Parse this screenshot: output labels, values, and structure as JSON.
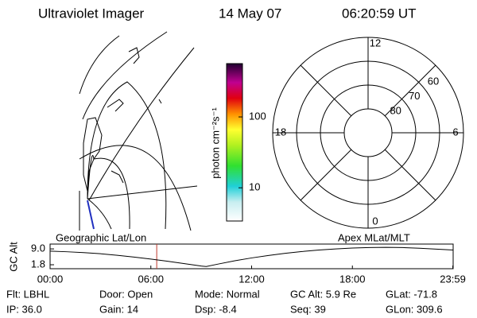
{
  "header": {
    "title": "Ultraviolet Imager",
    "date": "14 May 07",
    "time": "06:20:59 UT"
  },
  "colorbar": {
    "label": "photon cm⁻²s⁻¹",
    "scale": "log",
    "lim": [
      3.4,
      565
    ],
    "ticks": [
      10,
      100
    ]
  },
  "polar": {
    "rlim": [
      90,
      50
    ],
    "rticks": [
      60,
      70,
      80
    ],
    "thetaticks": [
      0,
      6,
      12,
      18
    ]
  },
  "chart_data": {
    "type": "line",
    "left_label": "Geographic Lat/Lon",
    "right_label": "Apex MLat/MLT",
    "ylabel": "GC Alt",
    "x": [
      0,
      1,
      2,
      3,
      4,
      5,
      6,
      7,
      8,
      9,
      9.3,
      10,
      11,
      12,
      13,
      14,
      15,
      16,
      17,
      18,
      19,
      20,
      21,
      22,
      23,
      24
    ],
    "values": [
      8.0,
      7.7,
      7.3,
      6.8,
      6.1,
      5.3,
      4.4,
      3.4,
      2.3,
      1.2,
      1.0,
      2.1,
      3.6,
      4.9,
      6.0,
      7.0,
      7.8,
      8.5,
      9.0,
      9.4,
      9.6,
      9.7,
      9.6,
      9.3,
      8.9,
      8.5
    ],
    "color": "#000000",
    "xlim": [
      0,
      24
    ],
    "ylim": [
      0,
      11.2
    ],
    "xticks": [
      {
        "value": 0,
        "label": "00:00"
      },
      {
        "value": 6,
        "label": "06:00"
      },
      {
        "value": 12,
        "label": "12:00"
      },
      {
        "value": 18,
        "label": "18:00"
      },
      {
        "value": 23.98,
        "label": "23:59"
      }
    ],
    "yticks": [
      {
        "value": 1.8,
        "label": "1.8"
      },
      {
        "value": 9.0,
        "label": "9.0"
      }
    ],
    "time_marker": 6.35,
    "marker_color": "#c0392b"
  },
  "footer": {
    "rows": [
      [
        "Flt: LBHL",
        "Door: Open",
        "Mode: Normal",
        "GC Alt: 5.9 Re",
        "GLat: -71.8"
      ],
      [
        "IP: 36.0",
        "Gain: 14",
        "Dsp: -8.4",
        "Seq: 39",
        "GLon: 309.6"
      ]
    ]
  }
}
